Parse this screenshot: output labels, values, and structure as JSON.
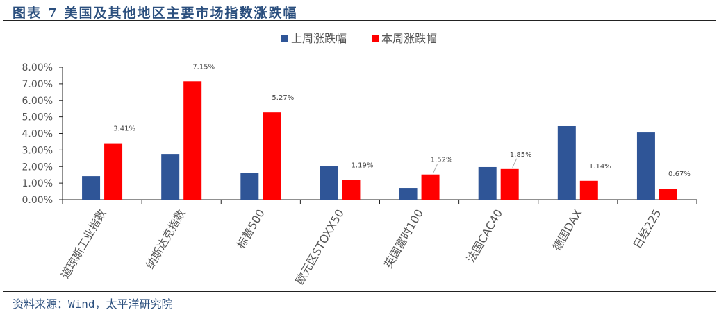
{
  "title": "图表 7 美国及其他地区主要市场指数涨跌幅",
  "source": "资料来源：Wind，太平洋研究院",
  "chart_data": {
    "type": "bar",
    "title": "",
    "xlabel": "",
    "ylabel": "",
    "ylim": [
      0,
      8
    ],
    "yticks": [
      "0.00%",
      "1.00%",
      "2.00%",
      "3.00%",
      "4.00%",
      "5.00%",
      "6.00%",
      "7.00%",
      "8.00%"
    ],
    "legend_position": "top-right",
    "categories": [
      "道琼斯工业指数",
      "纳斯达克指数",
      "标普500",
      "欧元区STOXX50",
      "英国富时100",
      "法国CAC40",
      "德国DAX",
      "日经225"
    ],
    "series": [
      {
        "name": "上周涨跌幅",
        "color": "#2f5597",
        "values": [
          1.42,
          2.76,
          1.63,
          2.01,
          0.71,
          1.97,
          4.44,
          4.06
        ],
        "data_labels": null
      },
      {
        "name": "本周涨跌幅",
        "color": "#ff0000",
        "values": [
          3.41,
          7.15,
          5.27,
          1.19,
          1.52,
          1.85,
          1.14,
          0.67
        ],
        "data_labels": [
          "3.41%",
          "7.15%",
          "5.27%",
          "1.19%",
          "1.52%",
          "1.85%",
          "1.14%",
          "0.67%"
        ]
      }
    ]
  }
}
